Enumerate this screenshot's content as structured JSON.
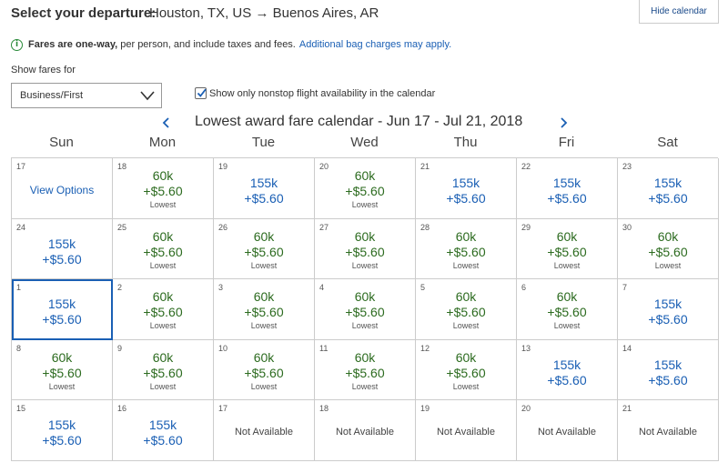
{
  "header": {
    "departure_label": "Select your departure:",
    "route": "Houston, TX, US → Buenos Aires, AR",
    "hide_calendar": "Hide calendar"
  },
  "info": {
    "bold": "Fares are one-way,",
    "text": "per person, and include taxes and fees.",
    "link": "Additional bag charges may apply.",
    "icon": "info-icon",
    "icon_glyph": "i"
  },
  "filters": {
    "show_fares_label": "Show fares for",
    "cabin_selected": "Business/First",
    "nonstop_checked": true,
    "nonstop_label": "Show only nonstop flight availability in the calendar"
  },
  "calendar": {
    "title": "Lowest award fare calendar - Jun 17 - Jul 21, 2018",
    "weekdays": [
      "Sun",
      "Mon",
      "Tue",
      "Wed",
      "Thu",
      "Fri",
      "Sat"
    ],
    "colors": {
      "green": "#2c6b1f",
      "blue": "#1a5fb4",
      "selected_border": "#1a5fb4"
    },
    "cells": [
      {
        "day": "17",
        "type": "view",
        "text": "View Options"
      },
      {
        "day": "18",
        "type": "green",
        "miles": "60k",
        "tax": "+$5.60",
        "note": "Lowest"
      },
      {
        "day": "19",
        "type": "blue",
        "miles": "155k",
        "tax": "+$5.60"
      },
      {
        "day": "20",
        "type": "green",
        "miles": "60k",
        "tax": "+$5.60",
        "note": "Lowest"
      },
      {
        "day": "21",
        "type": "blue",
        "miles": "155k",
        "tax": "+$5.60"
      },
      {
        "day": "22",
        "type": "blue",
        "miles": "155k",
        "tax": "+$5.60"
      },
      {
        "day": "23",
        "type": "blue",
        "miles": "155k",
        "tax": "+$5.60"
      },
      {
        "day": "24",
        "type": "blue",
        "miles": "155k",
        "tax": "+$5.60"
      },
      {
        "day": "25",
        "type": "green",
        "miles": "60k",
        "tax": "+$5.60",
        "note": "Lowest"
      },
      {
        "day": "26",
        "type": "green",
        "miles": "60k",
        "tax": "+$5.60",
        "note": "Lowest"
      },
      {
        "day": "27",
        "type": "green",
        "miles": "60k",
        "tax": "+$5.60",
        "note": "Lowest"
      },
      {
        "day": "28",
        "type": "green",
        "miles": "60k",
        "tax": "+$5.60",
        "note": "Lowest"
      },
      {
        "day": "29",
        "type": "green",
        "miles": "60k",
        "tax": "+$5.60",
        "note": "Lowest"
      },
      {
        "day": "30",
        "type": "green",
        "miles": "60k",
        "tax": "+$5.60",
        "note": "Lowest"
      },
      {
        "day": "1",
        "type": "blue",
        "miles": "155k",
        "tax": "+$5.60",
        "selected": true
      },
      {
        "day": "2",
        "type": "green",
        "miles": "60k",
        "tax": "+$5.60",
        "note": "Lowest"
      },
      {
        "day": "3",
        "type": "green",
        "miles": "60k",
        "tax": "+$5.60",
        "note": "Lowest"
      },
      {
        "day": "4",
        "type": "green",
        "miles": "60k",
        "tax": "+$5.60",
        "note": "Lowest"
      },
      {
        "day": "5",
        "type": "green",
        "miles": "60k",
        "tax": "+$5.60",
        "note": "Lowest"
      },
      {
        "day": "6",
        "type": "green",
        "miles": "60k",
        "tax": "+$5.60",
        "note": "Lowest"
      },
      {
        "day": "7",
        "type": "blue",
        "miles": "155k",
        "tax": "+$5.60"
      },
      {
        "day": "8",
        "type": "green",
        "miles": "60k",
        "tax": "+$5.60",
        "note": "Lowest"
      },
      {
        "day": "9",
        "type": "green",
        "miles": "60k",
        "tax": "+$5.60",
        "note": "Lowest"
      },
      {
        "day": "10",
        "type": "green",
        "miles": "60k",
        "tax": "+$5.60",
        "note": "Lowest"
      },
      {
        "day": "11",
        "type": "green",
        "miles": "60k",
        "tax": "+$5.60",
        "note": "Lowest"
      },
      {
        "day": "12",
        "type": "green",
        "miles": "60k",
        "tax": "+$5.60",
        "note": "Lowest"
      },
      {
        "day": "13",
        "type": "blue",
        "miles": "155k",
        "tax": "+$5.60"
      },
      {
        "day": "14",
        "type": "blue",
        "miles": "155k",
        "tax": "+$5.60"
      },
      {
        "day": "15",
        "type": "blue",
        "miles": "155k",
        "tax": "+$5.60"
      },
      {
        "day": "16",
        "type": "blue",
        "miles": "155k",
        "tax": "+$5.60"
      },
      {
        "day": "17",
        "type": "na",
        "text": "Not Available"
      },
      {
        "day": "18",
        "type": "na",
        "text": "Not Available"
      },
      {
        "day": "19",
        "type": "na",
        "text": "Not Available"
      },
      {
        "day": "20",
        "type": "na",
        "text": "Not Available"
      },
      {
        "day": "21",
        "type": "na",
        "text": "Not Available"
      }
    ]
  }
}
